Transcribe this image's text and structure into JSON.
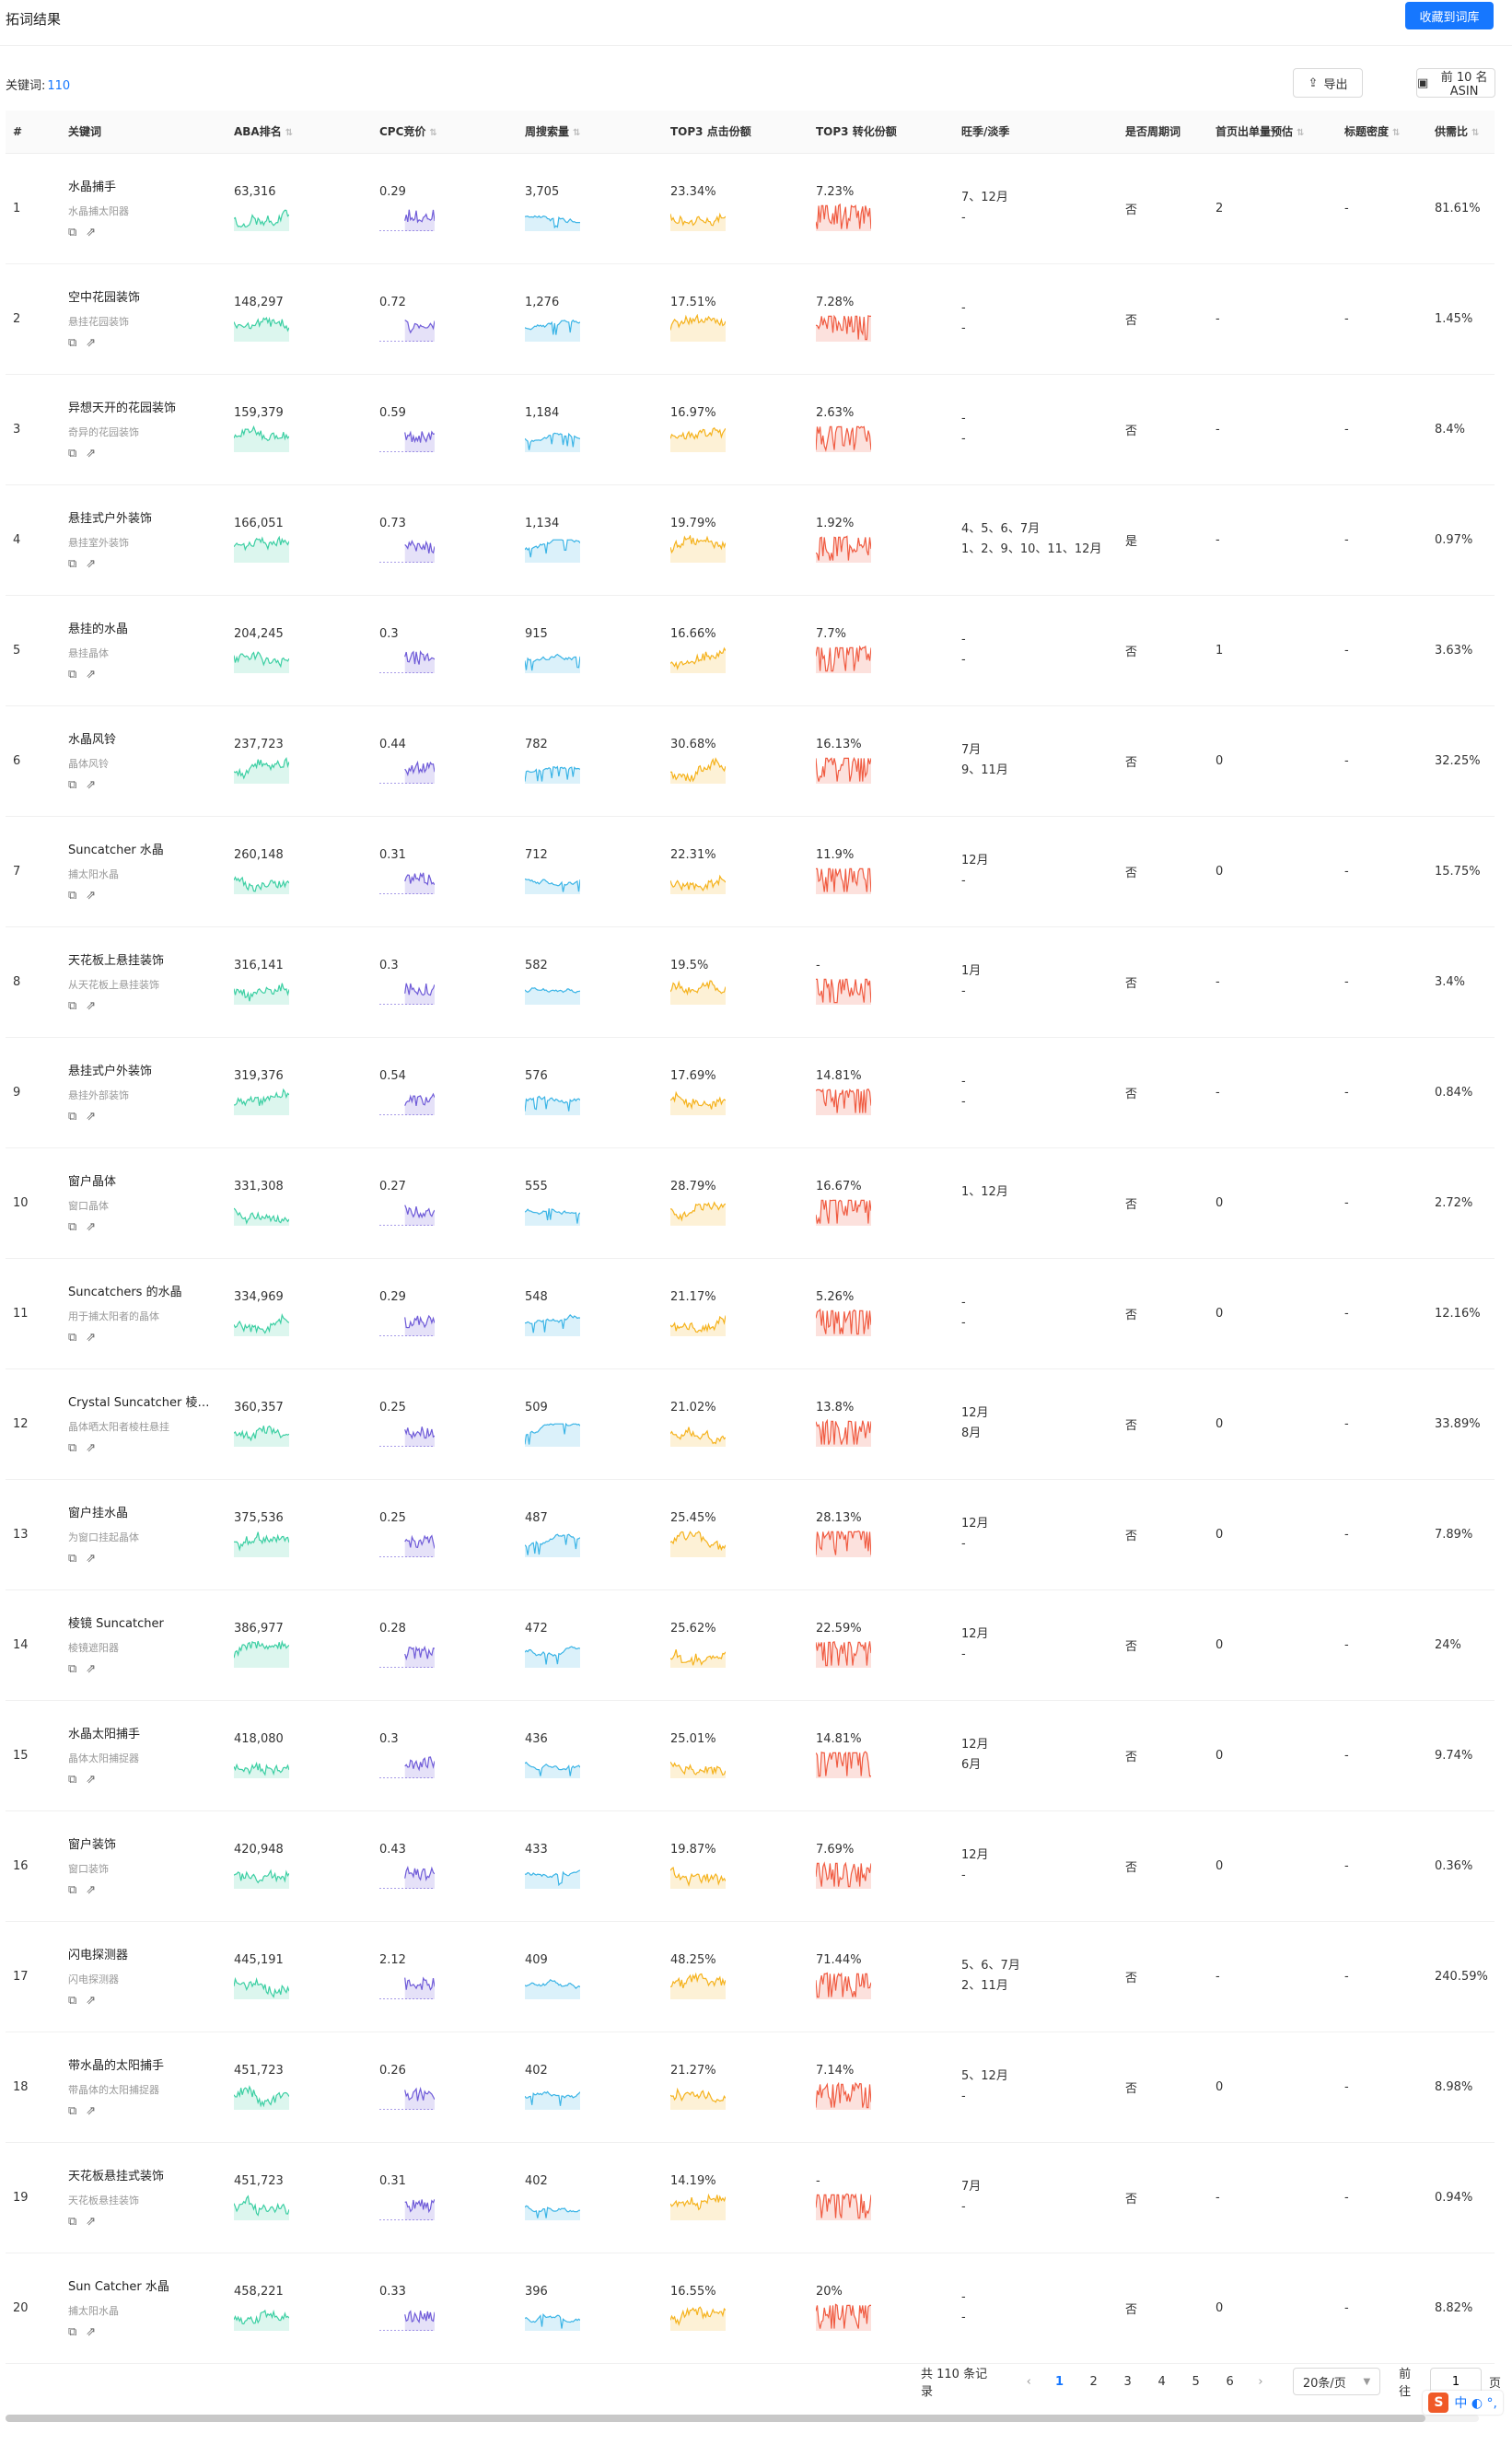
{
  "header": {
    "title": "拓词结果",
    "save_label": "收藏到词库"
  },
  "summary": {
    "label": "关键词:",
    "count": "110"
  },
  "toolbar": {
    "export_label": "导出",
    "top10_label": "前 10 名 ASIN"
  },
  "icons": {
    "export": "export-icon",
    "image": "image-icon",
    "copy": "copy-icon",
    "share": "share-icon",
    "sort": "sort-icon"
  },
  "colors": {
    "aba": "#3ccfa3",
    "cpc": "#6f5bd8",
    "search": "#3ab4e6",
    "click": "#f5b21c",
    "conv": "#f05b41",
    "accent": "#1677ff"
  },
  "columns": [
    "#",
    "关键词",
    "ABA排名",
    "CPC竞价",
    "周搜索量",
    "TOP3 点击份额",
    "TOP3 转化份额",
    "旺季/淡季",
    "是否周期词",
    "首页出单量预估",
    "标题密度",
    "供需比"
  ],
  "rows": [
    {
      "idx": "1",
      "kw": "水晶捕手",
      "sub": "水晶捕太阳器",
      "aba": "63,316",
      "cpc": "0.29",
      "search": "3,705",
      "click": "23.34%",
      "conv": "7.23%",
      "peak": "7、12月",
      "off": "-",
      "cycle": "否",
      "first": "2",
      "density": "-",
      "ratio": "81.61%"
    },
    {
      "idx": "2",
      "kw": "空中花园装饰",
      "sub": "悬挂花园装饰",
      "aba": "148,297",
      "cpc": "0.72",
      "search": "1,276",
      "click": "17.51%",
      "conv": "7.28%",
      "peak": "-",
      "off": "-",
      "cycle": "否",
      "first": "-",
      "density": "-",
      "ratio": "1.45%"
    },
    {
      "idx": "3",
      "kw": "异想天开的花园装饰",
      "sub": "奇异的花园装饰",
      "aba": "159,379",
      "cpc": "0.59",
      "search": "1,184",
      "click": "16.97%",
      "conv": "2.63%",
      "peak": "-",
      "off": "-",
      "cycle": "否",
      "first": "-",
      "density": "-",
      "ratio": "8.4%"
    },
    {
      "idx": "4",
      "kw": "悬挂式户外装饰",
      "sub": "悬挂室外装饰",
      "aba": "166,051",
      "cpc": "0.73",
      "search": "1,134",
      "click": "19.79%",
      "conv": "1.92%",
      "peak": "4、5、6、7月",
      "off": "1、2、9、10、11、12月",
      "cycle": "是",
      "first": "-",
      "density": "-",
      "ratio": "0.97%"
    },
    {
      "idx": "5",
      "kw": "悬挂的水晶",
      "sub": "悬挂晶体",
      "aba": "204,245",
      "cpc": "0.3",
      "search": "915",
      "click": "16.66%",
      "conv": "7.7%",
      "peak": "-",
      "off": "-",
      "cycle": "否",
      "first": "1",
      "density": "-",
      "ratio": "3.63%"
    },
    {
      "idx": "6",
      "kw": "水晶风铃",
      "sub": "晶体风铃",
      "aba": "237,723",
      "cpc": "0.44",
      "search": "782",
      "click": "30.68%",
      "conv": "16.13%",
      "peak": "7月",
      "off": "9、11月",
      "cycle": "否",
      "first": "0",
      "density": "-",
      "ratio": "32.25%"
    },
    {
      "idx": "7",
      "kw": "Suncatcher 水晶",
      "sub": "捕太阳水晶",
      "aba": "260,148",
      "cpc": "0.31",
      "search": "712",
      "click": "22.31%",
      "conv": "11.9%",
      "peak": "12月",
      "off": "-",
      "cycle": "否",
      "first": "0",
      "density": "-",
      "ratio": "15.75%"
    },
    {
      "idx": "8",
      "kw": "天花板上悬挂装饰",
      "sub": "从天花板上悬挂装饰",
      "aba": "316,141",
      "cpc": "0.3",
      "search": "582",
      "click": "19.5%",
      "conv": "-",
      "peak": "1月",
      "off": "-",
      "cycle": "否",
      "first": "-",
      "density": "-",
      "ratio": "3.4%"
    },
    {
      "idx": "9",
      "kw": "悬挂式户外装饰",
      "sub": "悬挂外部装饰",
      "aba": "319,376",
      "cpc": "0.54",
      "search": "576",
      "click": "17.69%",
      "conv": "14.81%",
      "peak": "-",
      "off": "-",
      "cycle": "否",
      "first": "-",
      "density": "-",
      "ratio": "0.84%"
    },
    {
      "idx": "10",
      "kw": "窗户晶体",
      "sub": "窗口晶体",
      "aba": "331,308",
      "cpc": "0.27",
      "search": "555",
      "click": "28.79%",
      "conv": "16.67%",
      "peak": "1、12月",
      "off": "",
      "cycle": "否",
      "first": "0",
      "density": "-",
      "ratio": "2.72%"
    },
    {
      "idx": "11",
      "kw": "Suncatchers 的水晶",
      "sub": "用于捕太阳者的晶体",
      "aba": "334,969",
      "cpc": "0.29",
      "search": "548",
      "click": "21.17%",
      "conv": "5.26%",
      "peak": "-",
      "off": "-",
      "cycle": "否",
      "first": "0",
      "density": "-",
      "ratio": "12.16%"
    },
    {
      "idx": "12",
      "kw": "Crystal Suncatcher 棱…",
      "sub": "晶体晒太阳者棱柱悬挂",
      "aba": "360,357",
      "cpc": "0.25",
      "search": "509",
      "click": "21.02%",
      "conv": "13.8%",
      "peak": "12月",
      "off": "8月",
      "cycle": "否",
      "first": "0",
      "density": "-",
      "ratio": "33.89%"
    },
    {
      "idx": "13",
      "kw": "窗户挂水晶",
      "sub": "为窗口挂起晶体",
      "aba": "375,536",
      "cpc": "0.25",
      "search": "487",
      "click": "25.45%",
      "conv": "28.13%",
      "peak": "12月",
      "off": "-",
      "cycle": "否",
      "first": "0",
      "density": "-",
      "ratio": "7.89%"
    },
    {
      "idx": "14",
      "kw": "棱镜 Suncatcher",
      "sub": "棱镜遮阳器",
      "aba": "386,977",
      "cpc": "0.28",
      "search": "472",
      "click": "25.62%",
      "conv": "22.59%",
      "peak": "12月",
      "off": "-",
      "cycle": "否",
      "first": "0",
      "density": "-",
      "ratio": "24%"
    },
    {
      "idx": "15",
      "kw": "水晶太阳捕手",
      "sub": "晶体太阳捕捉器",
      "aba": "418,080",
      "cpc": "0.3",
      "search": "436",
      "click": "25.01%",
      "conv": "14.81%",
      "peak": "12月",
      "off": "6月",
      "cycle": "否",
      "first": "0",
      "density": "-",
      "ratio": "9.74%"
    },
    {
      "idx": "16",
      "kw": "窗户装饰",
      "sub": "窗口装饰",
      "aba": "420,948",
      "cpc": "0.43",
      "search": "433",
      "click": "19.87%",
      "conv": "7.69%",
      "peak": "12月",
      "off": "-",
      "cycle": "否",
      "first": "0",
      "density": "-",
      "ratio": "0.36%"
    },
    {
      "idx": "17",
      "kw": "闪电探测器",
      "sub": "闪电探测器",
      "aba": "445,191",
      "cpc": "2.12",
      "search": "409",
      "click": "48.25%",
      "conv": "71.44%",
      "peak": "5、6、7月",
      "off": "2、11月",
      "cycle": "否",
      "first": "-",
      "density": "-",
      "ratio": "240.59%"
    },
    {
      "idx": "18",
      "kw": "带水晶的太阳捕手",
      "sub": "带晶体的太阳捕捉器",
      "aba": "451,723",
      "cpc": "0.26",
      "search": "402",
      "click": "21.27%",
      "conv": "7.14%",
      "peak": "5、12月",
      "off": "-",
      "cycle": "否",
      "first": "0",
      "density": "-",
      "ratio": "8.98%"
    },
    {
      "idx": "19",
      "kw": "天花板悬挂式装饰",
      "sub": "天花板悬挂装饰",
      "aba": "451,723",
      "cpc": "0.31",
      "search": "402",
      "click": "14.19%",
      "conv": "-",
      "peak": "7月",
      "off": "-",
      "cycle": "否",
      "first": "-",
      "density": "-",
      "ratio": "0.94%"
    },
    {
      "idx": "20",
      "kw": "Sun Catcher 水晶",
      "sub": "捕太阳水晶",
      "aba": "458,221",
      "cpc": "0.33",
      "search": "396",
      "click": "16.55%",
      "conv": "20%",
      "peak": "-",
      "off": "-",
      "cycle": "否",
      "first": "0",
      "density": "-",
      "ratio": "8.82%"
    }
  ],
  "pager": {
    "total": "共 110 条记录",
    "pages": [
      "1",
      "2",
      "3",
      "4",
      "5",
      "6"
    ],
    "current": "1",
    "page_size": "20条/页",
    "goto_label": "前往",
    "goto_value": "1",
    "goto_suffix": "页"
  },
  "ime": {
    "text": "中 ◐ °,"
  }
}
